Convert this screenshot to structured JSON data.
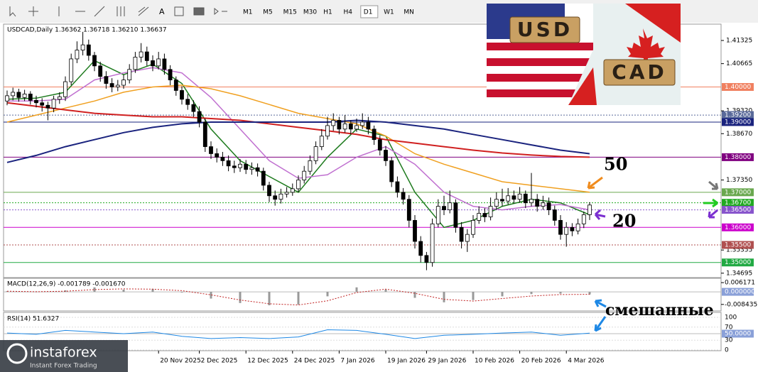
{
  "toolbar": {
    "timeframes": [
      "M1",
      "M5",
      "M15",
      "M30",
      "H1",
      "H4",
      "D1",
      "W1",
      "MN"
    ],
    "active": "D1"
  },
  "logo": {
    "brand": "instaforex",
    "tagline": "Instant Forex Trading"
  },
  "banner": {
    "left": "USD",
    "right": "CAD"
  },
  "annotations": [
    {
      "text": "50",
      "color": "#f08c1e"
    },
    {
      "text": "20",
      "color": "#7b2fd0"
    },
    {
      "text": "смешанные",
      "color": "#1e88e5"
    }
  ],
  "chart_data": {
    "type": "candlestick",
    "header": "USDCAD,Daily 1.36362 1.36718 1.36210 1.36637",
    "ylim": [
      1.3459,
      1.4177
    ],
    "yticks": [
      1.41325,
      1.40665,
      {
        "value": 1.3932,
        "label": "1.39320"
      },
      {
        "value": 1.3867,
        "label": "1.38670"
      },
      {
        "value": 1.3735,
        "label": "1.37350"
      },
      1.35355,
      1.34695
    ],
    "levels": [
      {
        "value": 1.4,
        "label": "1.40000",
        "color": "#f08060",
        "style": "solid"
      },
      {
        "value": 1.392,
        "label": "1.39200",
        "color": "#5a6a9a",
        "style": "dotted"
      },
      {
        "value": 1.39,
        "label": "1.39000",
        "color": "#1a237e",
        "style": "solid"
      },
      {
        "value": 1.38,
        "label": "1.38000",
        "color": "#800080",
        "style": "solid"
      },
      {
        "value": 1.37,
        "label": "1.37000",
        "color": "#6aa84f",
        "style": "solid"
      },
      {
        "value": 1.367,
        "label": "1.36700",
        "color": "#22aa22",
        "style": "dotted"
      },
      {
        "value": 1.365,
        "label": "1.36500",
        "color": "#8855cc",
        "style": "dotted"
      },
      {
        "value": 1.36,
        "label": "1.36000",
        "color": "#cc00cc",
        "style": "solid"
      },
      {
        "value": 1.355,
        "label": "1.35500",
        "color": "#b05050",
        "style": "dotted"
      },
      {
        "value": 1.35,
        "label": "1.35000",
        "color": "#22aa44",
        "style": "solid"
      }
    ],
    "categories": [
      null,
      null,
      null,
      null,
      null,
      null,
      null,
      null,
      null,
      null,
      null,
      null,
      null,
      null,
      null,
      null,
      null,
      null,
      null,
      null,
      null,
      null,
      null,
      null,
      null,
      null,
      "20 Nov 2025",
      null,
      null,
      null,
      null,
      null,
      null,
      "2 Dec 2025",
      null,
      null,
      null,
      null,
      null,
      null,
      null,
      "12 Dec 2025",
      null,
      null,
      null,
      null,
      null,
      null,
      null,
      "24 Dec 2025",
      null,
      null,
      null,
      null,
      null,
      null,
      null,
      "7 Jan 2026",
      null,
      null,
      null,
      null,
      null,
      null,
      null,
      "19 Jan 2026",
      null,
      null,
      null,
      null,
      null,
      null,
      "29 Jan 2026",
      null,
      null,
      null,
      null,
      null,
      null,
      null,
      "10 Feb 2026",
      null,
      null,
      null,
      null,
      null,
      null,
      null,
      "20 Feb 2026",
      null,
      null,
      null,
      null,
      null,
      null,
      null,
      "4 Mar 2026",
      null,
      null,
      null,
      null
    ],
    "candles": [
      [
        1.396,
        1.399,
        1.3948,
        1.3975
      ],
      [
        1.3975,
        1.3998,
        1.3962,
        1.3985
      ],
      [
        1.3985,
        1.3995,
        1.3958,
        1.397
      ],
      [
        1.397,
        1.3992,
        1.396,
        1.398
      ],
      [
        1.398,
        1.3988,
        1.395,
        1.3962
      ],
      [
        1.3962,
        1.3975,
        1.3942,
        1.3955
      ],
      [
        1.3955,
        1.3968,
        1.393,
        1.3948
      ],
      [
        1.3948,
        1.3958,
        1.3905,
        1.394
      ],
      [
        1.394,
        1.3975,
        1.3928,
        1.3965
      ],
      [
        1.3965,
        1.3985,
        1.3952,
        1.3972
      ],
      [
        1.3972,
        1.403,
        1.396,
        1.4015
      ],
      [
        1.4015,
        1.4095,
        1.4005,
        1.408
      ],
      [
        1.408,
        1.413,
        1.4068,
        1.4105
      ],
      [
        1.4105,
        1.4157,
        1.409,
        1.412
      ],
      [
        1.412,
        1.4135,
        1.4075,
        1.409
      ],
      [
        1.409,
        1.41,
        1.4045,
        1.406
      ],
      [
        1.406,
        1.4072,
        1.4015,
        1.403
      ],
      [
        1.403,
        1.4045,
        1.3995,
        1.401
      ],
      [
        1.401,
        1.4025,
        1.3985,
        1.4
      ],
      [
        1.4,
        1.402,
        1.3988,
        1.4005
      ],
      [
        1.4005,
        1.4035,
        1.3995,
        1.402
      ],
      [
        1.402,
        1.4065,
        1.401,
        1.405
      ],
      [
        1.405,
        1.41,
        1.404,
        1.4085
      ],
      [
        1.4085,
        1.4125,
        1.407,
        1.41
      ],
      [
        1.41,
        1.4115,
        1.406,
        1.4075
      ],
      [
        1.4075,
        1.409,
        1.4045,
        1.406
      ],
      [
        1.406,
        1.41,
        1.405,
        1.408
      ],
      [
        1.408,
        1.4095,
        1.4035,
        1.405
      ],
      [
        1.405,
        1.4062,
        1.4005,
        1.402
      ],
      [
        1.402,
        1.403,
        1.3975,
        1.399
      ],
      [
        1.399,
        1.4002,
        1.395,
        1.3965
      ],
      [
        1.3965,
        1.398,
        1.3935,
        1.395
      ],
      [
        1.395,
        1.3962,
        1.3915,
        1.393
      ],
      [
        1.393,
        1.3945,
        1.3885,
        1.39
      ],
      [
        1.39,
        1.391,
        1.3815,
        1.383
      ],
      [
        1.383,
        1.3845,
        1.3795,
        1.381
      ],
      [
        1.381,
        1.3825,
        1.3785,
        1.38
      ],
      [
        1.38,
        1.3815,
        1.3775,
        1.379
      ],
      [
        1.379,
        1.3805,
        1.376,
        1.3775
      ],
      [
        1.3775,
        1.379,
        1.3755,
        1.377
      ],
      [
        1.377,
        1.3795,
        1.3758,
        1.378
      ],
      [
        1.378,
        1.3792,
        1.3752,
        1.3765
      ],
      [
        1.3765,
        1.3785,
        1.375,
        1.377
      ],
      [
        1.377,
        1.3782,
        1.3745,
        1.376
      ],
      [
        1.376,
        1.377,
        1.3705,
        1.372
      ],
      [
        1.372,
        1.373,
        1.3672,
        1.369
      ],
      [
        1.369,
        1.3705,
        1.3662,
        1.368
      ],
      [
        1.368,
        1.371,
        1.3668,
        1.3695
      ],
      [
        1.3695,
        1.3715,
        1.3685,
        1.37
      ],
      [
        1.37,
        1.3725,
        1.369,
        1.371
      ],
      [
        1.371,
        1.3748,
        1.37,
        1.3735
      ],
      [
        1.3735,
        1.3775,
        1.3725,
        1.376
      ],
      [
        1.376,
        1.3805,
        1.375,
        1.379
      ],
      [
        1.379,
        1.3845,
        1.378,
        1.383
      ],
      [
        1.383,
        1.388,
        1.382,
        1.386
      ],
      [
        1.386,
        1.3915,
        1.385,
        1.389
      ],
      [
        1.389,
        1.3925,
        1.3875,
        1.3905
      ],
      [
        1.3905,
        1.3915,
        1.3865,
        1.388
      ],
      [
        1.388,
        1.392,
        1.387,
        1.3895
      ],
      [
        1.3895,
        1.3905,
        1.3865,
        1.388
      ],
      [
        1.388,
        1.391,
        1.3872,
        1.389
      ],
      [
        1.389,
        1.3925,
        1.388,
        1.39
      ],
      [
        1.39,
        1.3915,
        1.3865,
        1.388
      ],
      [
        1.388,
        1.389,
        1.3835,
        1.385
      ],
      [
        1.385,
        1.3862,
        1.3805,
        1.382
      ],
      [
        1.382,
        1.3832,
        1.3775,
        1.379
      ],
      [
        1.379,
        1.38,
        1.3715,
        1.373
      ],
      [
        1.373,
        1.3745,
        1.3685,
        1.37
      ],
      [
        1.37,
        1.3712,
        1.3665,
        1.368
      ],
      [
        1.368,
        1.3692,
        1.36,
        1.362
      ],
      [
        1.362,
        1.3635,
        1.354,
        1.356
      ],
      [
        1.356,
        1.3575,
        1.35,
        1.352
      ],
      [
        1.352,
        1.353,
        1.3478,
        1.35
      ],
      [
        1.35,
        1.3625,
        1.3488,
        1.361
      ],
      [
        1.361,
        1.368,
        1.36,
        1.366
      ],
      [
        1.366,
        1.369,
        1.3635,
        1.365
      ],
      [
        1.365,
        1.3705,
        1.364,
        1.367
      ],
      [
        1.367,
        1.368,
        1.3585,
        1.36
      ],
      [
        1.36,
        1.3615,
        1.354,
        1.356
      ],
      [
        1.356,
        1.3595,
        1.353,
        1.358
      ],
      [
        1.358,
        1.3635,
        1.357,
        1.362
      ],
      [
        1.362,
        1.366,
        1.361,
        1.364
      ],
      [
        1.364,
        1.3655,
        1.3615,
        1.363
      ],
      [
        1.363,
        1.3685,
        1.362,
        1.366
      ],
      [
        1.366,
        1.37,
        1.365,
        1.368
      ],
      [
        1.368,
        1.371,
        1.366,
        1.3675
      ],
      [
        1.3675,
        1.3712,
        1.3665,
        1.369
      ],
      [
        1.369,
        1.3705,
        1.3668,
        1.368
      ],
      [
        1.368,
        1.3715,
        1.367,
        1.3695
      ],
      [
        1.3695,
        1.3705,
        1.3655,
        1.367
      ],
      [
        1.367,
        1.3755,
        1.366,
        1.368
      ],
      [
        1.368,
        1.3695,
        1.3645,
        1.366
      ],
      [
        1.366,
        1.369,
        1.365,
        1.367
      ],
      [
        1.367,
        1.3685,
        1.3635,
        1.365
      ],
      [
        1.365,
        1.3662,
        1.3605,
        1.362
      ],
      [
        1.362,
        1.3635,
        1.3565,
        1.358
      ],
      [
        1.358,
        1.3615,
        1.3545,
        1.36
      ],
      [
        1.36,
        1.3612,
        1.3575,
        1.359
      ],
      [
        1.359,
        1.3625,
        1.358,
        1.361
      ],
      [
        1.361,
        1.3645,
        1.3598,
        1.36362
      ],
      [
        1.36362,
        1.36718,
        1.3621,
        1.36637
      ]
    ],
    "ma_x": [
      0,
      5,
      10,
      15,
      20,
      25,
      30,
      35,
      40,
      45,
      50,
      55,
      60,
      65,
      70,
      75,
      80,
      85,
      90,
      95,
      100
    ],
    "ma_series": [
      {
        "color": "#1e7b1e",
        "values": [
          1.3965,
          1.3968,
          1.3985,
          1.4075,
          1.4035,
          1.4065,
          1.401,
          1.388,
          1.379,
          1.3745,
          1.37,
          1.38,
          1.388,
          1.386,
          1.37,
          1.36,
          1.362,
          1.366,
          1.368,
          1.367,
          1.3636
        ]
      },
      {
        "color": "#c070d0",
        "values": [
          1.396,
          1.396,
          1.3965,
          1.402,
          1.404,
          1.4055,
          1.404,
          1.397,
          1.388,
          1.379,
          1.374,
          1.375,
          1.38,
          1.383,
          1.378,
          1.37,
          1.366,
          1.365,
          1.366,
          1.3665,
          1.365
        ]
      },
      {
        "color": "#f0a020",
        "values": [
          1.39,
          1.392,
          1.394,
          1.396,
          1.3985,
          1.4,
          1.4005,
          1.3995,
          1.3975,
          1.395,
          1.3925,
          1.391,
          1.3895,
          1.386,
          1.381,
          1.378,
          1.3755,
          1.373,
          1.372,
          1.371,
          1.37
        ]
      },
      {
        "color": "#d02020",
        "values": [
          1.3955,
          1.3945,
          1.3935,
          1.3925,
          1.392,
          1.3915,
          1.3915,
          1.391,
          1.3905,
          1.3895,
          1.3885,
          1.3875,
          1.3865,
          1.385,
          1.384,
          1.383,
          1.382,
          1.3812,
          1.3806,
          1.3802,
          1.38
        ]
      },
      {
        "color": "#1a237e",
        "values": [
          1.3785,
          1.3805,
          1.383,
          1.385,
          1.387,
          1.3885,
          1.3895,
          1.39,
          1.39,
          1.39,
          1.39,
          1.39,
          1.3905,
          1.39,
          1.389,
          1.388,
          1.3865,
          1.385,
          1.3835,
          1.382,
          1.381
        ]
      }
    ],
    "macd": {
      "label": "MACD(12,26,9) -0.001789 -0.001670",
      "ylim": [
        -0.0128,
        0.0086
      ],
      "yticks": [
        0.006171,
        {
          "value": 0,
          "label": "0.000000"
        },
        -0.008435
      ],
      "values": [
        0.0005,
        -0.0002,
        0.001,
        0.003,
        0.0015,
        0.002,
        -0.0005,
        -0.0045,
        -0.0075,
        -0.009,
        -0.0085,
        -0.003,
        0.003,
        0.0015,
        -0.004,
        -0.007,
        -0.0055,
        -0.003,
        -0.0015,
        -0.0012,
        -0.001789
      ],
      "signal": [
        0.0004,
        0.0001,
        0.0004,
        0.0015,
        0.002,
        0.0018,
        0.0008,
        -0.002,
        -0.0055,
        -0.008,
        -0.0088,
        -0.006,
        -0.0005,
        0.0018,
        -0.001,
        -0.005,
        -0.0062,
        -0.0045,
        -0.0028,
        -0.0018,
        -0.00167
      ]
    },
    "rsi": {
      "label": "RSI(14) 51.6327",
      "ylim": [
        0,
        100
      ],
      "yticks": [
        100,
        70,
        {
          "value": 50,
          "label": "50.0000"
        },
        30,
        0
      ],
      "values": [
        52,
        48,
        60,
        55,
        50,
        55,
        42,
        35,
        38,
        35,
        40,
        62,
        60,
        48,
        35,
        45,
        48,
        52,
        55,
        45,
        51.6327
      ]
    }
  }
}
